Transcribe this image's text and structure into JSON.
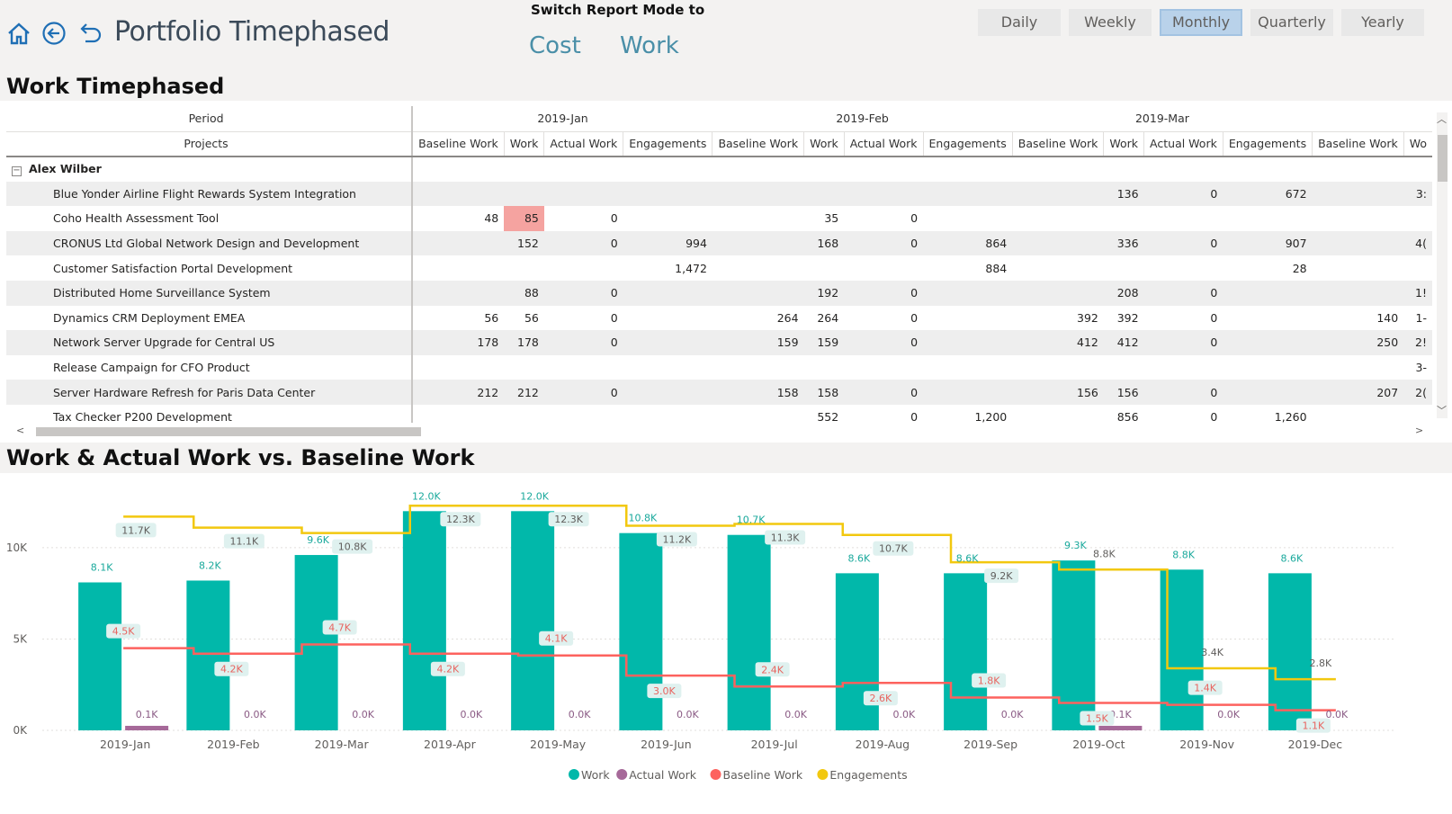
{
  "header": {
    "title": "Portfolio Timephased",
    "switch_label": "Switch Report Mode to",
    "modes": [
      "Cost",
      "Work"
    ],
    "periods": [
      "Daily",
      "Weekly",
      "Monthly",
      "Quarterly",
      "Yearly"
    ],
    "active_period": "Monthly",
    "icons": [
      "home-icon",
      "back-icon",
      "undo-icon"
    ]
  },
  "matrix": {
    "title": "Work Timephased",
    "period_label": "Period",
    "projects_label": "Projects",
    "periods": [
      "2019-Jan",
      "2019-Feb",
      "2019-Mar"
    ],
    "columns": [
      "Baseline Work",
      "Work",
      "Actual Work",
      "Engagements",
      "Baseline Work",
      "Work",
      "Actual Work",
      "Engagements",
      "Baseline Work",
      "Work",
      "Actual Work",
      "Engagements",
      "Baseline Work",
      "Wo"
    ],
    "group": "Alex Wilber",
    "rows": [
      {
        "name": "Blue Yonder Airline Flight Rewards System Integration",
        "values": [
          "",
          "",
          "",
          "",
          "",
          "",
          "",
          "",
          "",
          "136",
          "0",
          "672",
          "",
          "3:"
        ]
      },
      {
        "name": "Coho Health Assessment Tool",
        "values": [
          "48",
          "85",
          "0",
          "",
          "",
          "35",
          "0",
          "",
          "",
          "",
          "",
          "",
          "",
          ""
        ]
      },
      {
        "name": "CRONUS Ltd Global Network Design and Development",
        "values": [
          "",
          "152",
          "0",
          "994",
          "",
          "168",
          "0",
          "864",
          "",
          "336",
          "0",
          "907",
          "",
          "4("
        ]
      },
      {
        "name": "Customer Satisfaction Portal Development",
        "values": [
          "",
          "",
          "",
          "1,472",
          "",
          "",
          "",
          "884",
          "",
          "",
          "",
          "28",
          "",
          ""
        ]
      },
      {
        "name": "Distributed Home Surveillance System",
        "values": [
          "",
          "88",
          "0",
          "",
          "",
          "192",
          "0",
          "",
          "",
          "208",
          "0",
          "",
          "",
          "1!"
        ]
      },
      {
        "name": "Dynamics CRM Deployment EMEA",
        "values": [
          "56",
          "56",
          "0",
          "",
          "264",
          "264",
          "0",
          "",
          "392",
          "392",
          "0",
          "",
          "140",
          "1-"
        ]
      },
      {
        "name": "Network Server Upgrade for Central US",
        "values": [
          "178",
          "178",
          "0",
          "",
          "159",
          "159",
          "0",
          "",
          "412",
          "412",
          "0",
          "",
          "250",
          "2!"
        ]
      },
      {
        "name": "Release Campaign for CFO Product",
        "values": [
          "",
          "",
          "",
          "",
          "",
          "",
          "",
          "",
          "",
          "",
          "",
          "",
          "",
          "3-"
        ]
      },
      {
        "name": "Server Hardware Refresh for Paris Data Center",
        "values": [
          "212",
          "212",
          "0",
          "",
          "158",
          "158",
          "0",
          "",
          "156",
          "156",
          "0",
          "",
          "207",
          "2("
        ]
      },
      {
        "name": "Tax Checker P200 Development",
        "values": [
          "",
          "",
          "",
          "",
          "",
          "552",
          "0",
          "1,200",
          "",
          "856",
          "0",
          "1,260",
          "",
          ""
        ]
      }
    ]
  },
  "chart_section": {
    "title": "Work & Actual Work vs. Baseline Work"
  },
  "chart_data": {
    "type": "bar",
    "categories": [
      "2019-Jan",
      "2019-Feb",
      "2019-Mar",
      "2019-Apr",
      "2019-May",
      "2019-Jun",
      "2019-Jul",
      "2019-Aug",
      "2019-Sep",
      "2019-Oct",
      "2019-Nov",
      "2019-Dec"
    ],
    "y_ticks": [
      "0K",
      "5K",
      "10K"
    ],
    "ylim": [
      0,
      13000
    ],
    "series": [
      {
        "name": "Work",
        "kind": "bar",
        "color": "#01b8aa",
        "values": [
          8100,
          8200,
          9600,
          12000,
          12000,
          10800,
          10700,
          8600,
          8600,
          9300,
          8800,
          8600
        ],
        "labels": [
          "8.1K",
          "8.2K",
          "9.6K",
          "12.0K",
          "12.0K",
          "10.8K",
          "10.7K",
          "8.6K",
          "8.6K",
          "9.3K",
          "8.8K",
          "8.6K"
        ]
      },
      {
        "name": "Actual Work",
        "kind": "bar",
        "color": "#a66999",
        "values": [
          100,
          0,
          0,
          0,
          0,
          0,
          0,
          0,
          0,
          100,
          0,
          0
        ],
        "labels": [
          "0.1K",
          "0.0K",
          "0.0K",
          "0.0K",
          "0.0K",
          "0.0K",
          "0.0K",
          "0.0K",
          "0.0K",
          "0.1K",
          "0.0K",
          "0.0K"
        ]
      },
      {
        "name": "Baseline Work",
        "kind": "step",
        "color": "#fd625e",
        "values": [
          4500,
          4200,
          4700,
          4200,
          4100,
          3000,
          2400,
          2600,
          1800,
          1500,
          1400,
          1100
        ],
        "labels": [
          "4.5K",
          "4.2K",
          "4.7K",
          "4.2K",
          "4.1K",
          "3.0K",
          "2.4K",
          "2.6K",
          "1.8K",
          "1.5K",
          "1.4K",
          "1.1K"
        ]
      },
      {
        "name": "Engagements",
        "kind": "step",
        "color": "#f2c80f",
        "values": [
          11700,
          11100,
          10800,
          12300,
          12300,
          11200,
          11300,
          10700,
          9200,
          8800,
          3400,
          2800
        ],
        "labels": [
          "11.7K",
          "11.1K",
          "10.8K",
          "12.3K",
          "12.3K",
          "11.2K",
          "11.3K",
          "10.7K",
          "9.2K",
          "8.8K",
          "3.4K",
          "2.8K"
        ]
      }
    ],
    "legend_position": "bottom-center"
  }
}
